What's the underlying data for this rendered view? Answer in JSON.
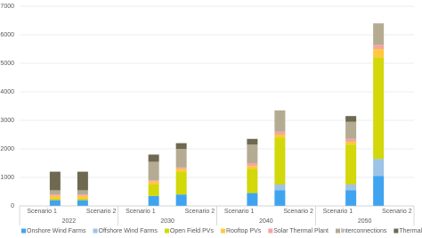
{
  "chart_data": {
    "type": "stacked_bar",
    "categories": [
      "Scenario 1",
      "Scenario 2",
      "Scenario 1",
      "Scenario 2",
      "Scenario 1",
      "Scenario 2",
      "Scenario 1",
      "Scenario 2"
    ],
    "groups": [
      "2022",
      "2030",
      "2040",
      "2050"
    ],
    "series": [
      {
        "name": "Onshore Wind Farms",
        "color": "#3fa4f0",
        "values": [
          200,
          200,
          350,
          400,
          450,
          550,
          550,
          1050
        ]
      },
      {
        "name": "Offshore Wind Farms",
        "color": "#9dc3e6",
        "values": [
          0,
          0,
          0,
          0,
          0,
          200,
          200,
          600
        ]
      },
      {
        "name": "Open Field PVs",
        "color": "#d2d80a",
        "values": [
          50,
          50,
          400,
          800,
          850,
          1650,
          1400,
          3550
        ]
      },
      {
        "name": "Rooftop PVs",
        "color": "#ffc83d",
        "values": [
          100,
          100,
          100,
          100,
          100,
          100,
          100,
          300
        ]
      },
      {
        "name": "Solar Thermal Plant",
        "color": "#f4a6a0",
        "values": [
          50,
          50,
          50,
          50,
          100,
          100,
          100,
          150
        ]
      },
      {
        "name": "Interconnections",
        "color": "#b5ab93",
        "values": [
          150,
          150,
          650,
          650,
          650,
          750,
          600,
          750
        ]
      },
      {
        "name": "Thermal Power Stations",
        "color": "#6e6950",
        "values": [
          650,
          650,
          250,
          200,
          200,
          0,
          200,
          0
        ]
      }
    ],
    "ylim": [
      0,
      7000
    ],
    "yticks": [
      0,
      1000,
      2000,
      3000,
      4000,
      5000,
      6000,
      7000
    ],
    "grid": true
  }
}
